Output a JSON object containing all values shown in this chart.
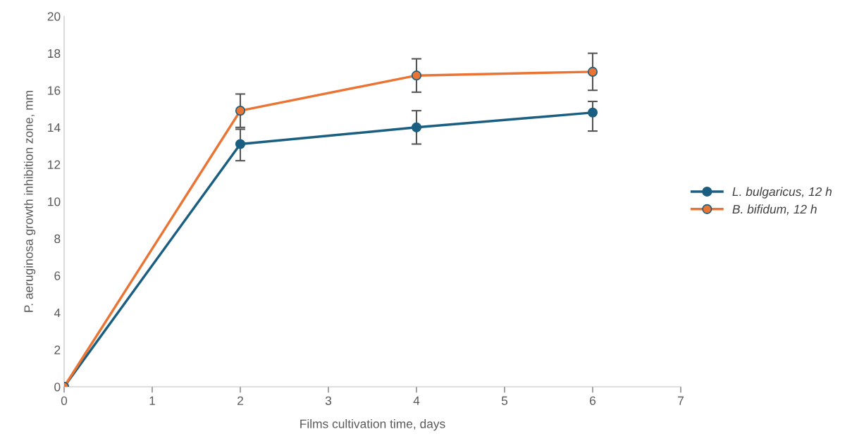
{
  "chart_data": {
    "type": "line",
    "xlabel": "Films cultivation time, days",
    "ylabel": "P. aeruginosa growth inhibition zone, mm",
    "x": [
      0,
      2,
      4,
      6
    ],
    "xlim": [
      0,
      7
    ],
    "xticks": [
      0,
      1,
      2,
      3,
      4,
      5,
      6,
      7
    ],
    "ylim": [
      0,
      20
    ],
    "yticks": [
      0,
      2,
      4,
      6,
      8,
      10,
      12,
      14,
      16,
      18,
      20
    ],
    "series": [
      {
        "name": "L. bulgaricus, 12 h",
        "color": "#1a5f82",
        "values": [
          0,
          13.1,
          14.0,
          14.8
        ],
        "errors": [
          null,
          [
            12.2,
            13.9
          ],
          [
            13.1,
            14.9
          ],
          [
            13.8,
            15.4
          ]
        ]
      },
      {
        "name": "B. bifidum, 12 h",
        "color": "#ea7434",
        "values": [
          0,
          14.9,
          16.8,
          17.0
        ],
        "errors": [
          null,
          [
            14.0,
            15.8
          ],
          [
            15.9,
            17.7
          ],
          [
            16.0,
            18.0
          ]
        ]
      }
    ],
    "marker": "circle",
    "line_style": "solid",
    "grid": false,
    "legend": "right"
  }
}
